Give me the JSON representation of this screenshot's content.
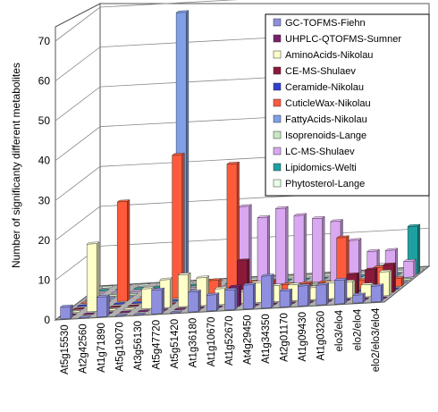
{
  "chart_data": {
    "type": "bar",
    "subtype": "3d-grouped",
    "ylabel": "Number of significanty different metabolites",
    "xlabel": "",
    "ylim": [
      0,
      70
    ],
    "yticks": [
      0,
      10,
      20,
      30,
      40,
      50,
      60,
      70
    ],
    "grid": true,
    "legend_position": "top-right",
    "categories": [
      "At5g15530",
      "At2g42560",
      "At1g71890",
      "At5g19070",
      "At3g56130",
      "At5g47720",
      "At5g51420",
      "At1g36180",
      "At1g10670",
      "At1g52670",
      "At4g29450",
      "At1g34350",
      "At2g01170",
      "At1g09430",
      "At1g03260",
      "elo3/elo4",
      "elo2/elo4",
      "elo2/elo3/elo4"
    ],
    "series": [
      {
        "name": "GC-TOFMS-Fiehn",
        "color": "#8f8fe0",
        "values": [
          3,
          0,
          5,
          0,
          0,
          6,
          0,
          5,
          4,
          5,
          6,
          8,
          4,
          5,
          5,
          6,
          2,
          4
        ]
      },
      {
        "name": "UHPLC-QTOFMS-Sumner",
        "color": "#7b1f6a",
        "values": [
          0,
          0,
          0,
          0,
          0,
          0,
          0,
          0,
          0,
          5,
          0,
          0,
          0,
          0,
          0,
          0,
          0,
          0
        ]
      },
      {
        "name": "AminoAcids-Nikolau",
        "color": "#ffffc8",
        "values": [
          0,
          17,
          0,
          0,
          5,
          7,
          8,
          7,
          4,
          3,
          5,
          4,
          4,
          3,
          4,
          4,
          3,
          6
        ]
      },
      {
        "name": "CE-MS-Shulaev",
        "color": "#8b1a3a",
        "values": [
          0,
          0,
          0,
          0,
          0,
          0,
          0,
          0,
          0,
          10,
          0,
          0,
          0,
          0,
          3,
          5,
          6,
          7
        ]
      },
      {
        "name": "Ceramide-Nikolau",
        "color": "#3040d0",
        "values": [
          0,
          0,
          0,
          0,
          0,
          0,
          0,
          0,
          0,
          0,
          0,
          0,
          0,
          0,
          0,
          0,
          0,
          0
        ]
      },
      {
        "name": "CuticleWax-Nikolau",
        "color": "#ff5a3c",
        "values": [
          0,
          0,
          25,
          0,
          0,
          36,
          0,
          4,
          33,
          3,
          3,
          2,
          2,
          2,
          13,
          2,
          5,
          2
        ]
      },
      {
        "name": "FattyAcids-Nikolau",
        "color": "#7f9fe8",
        "values": [
          0,
          0,
          0,
          0,
          0,
          71,
          0,
          0,
          0,
          0,
          0,
          0,
          0,
          0,
          0,
          0,
          0,
          0
        ]
      },
      {
        "name": "Isoprenoids-Lange",
        "color": "#c8e8c0",
        "values": [
          0,
          0,
          0,
          0,
          0,
          0,
          0,
          0,
          0,
          0,
          0,
          0,
          0,
          0,
          0,
          0,
          0,
          0
        ]
      },
      {
        "name": "LC-MS-Shulaev",
        "color": "#d9a8f0",
        "values": [
          0,
          0,
          0,
          0,
          0,
          0,
          0,
          0,
          20,
          17,
          19,
          17,
          16,
          15,
          10,
          7,
          7,
          4
        ]
      },
      {
        "name": "Lipidomics-Welti",
        "color": "#1fa0a0",
        "values": [
          0,
          0,
          0,
          0,
          0,
          0,
          0,
          0,
          0,
          0,
          0,
          0,
          0,
          0,
          0,
          0,
          0,
          12
        ]
      },
      {
        "name": "Phytosterol-Lange",
        "color": "#e8ffe8",
        "values": [
          0,
          0,
          0,
          0,
          0,
          0,
          0,
          0,
          0,
          0,
          0,
          0,
          0,
          0,
          0,
          2,
          0,
          0
        ]
      }
    ]
  }
}
